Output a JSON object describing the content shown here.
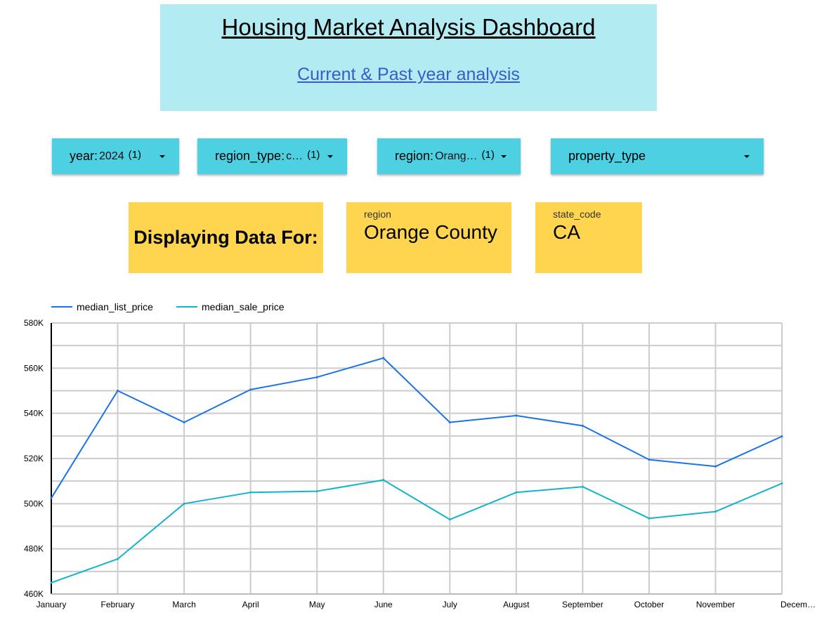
{
  "header": {
    "title": "Housing Market Analysis Dashboard",
    "subtitle_link": "Current & Past year analysis"
  },
  "filters": [
    {
      "key": "year",
      "value": "2024",
      "count": "(1)"
    },
    {
      "key": "region_type",
      "value": "c…",
      "count": "(1)"
    },
    {
      "key": "region",
      "value": "Orang…",
      "count": "(1)"
    },
    {
      "key": "property_type",
      "value": "",
      "count": ""
    }
  ],
  "scorecards": {
    "display_label": "Displaying Data For:",
    "region": {
      "label": "region",
      "value": "Orange County"
    },
    "state_code": {
      "label": "state_code",
      "value": "CA"
    }
  },
  "colors": {
    "header_bg": "#b2ebf2",
    "filter_bg": "#4dd0e1",
    "card_bg": "#ffd54f",
    "link": "#3c5bc5",
    "median_list_price": "#1a73e8",
    "median_sale_price": "#12b5cb"
  },
  "chart_data": {
    "type": "line",
    "categories": [
      "January",
      "February",
      "March",
      "April",
      "May",
      "June",
      "July",
      "August",
      "September",
      "October",
      "November",
      "Decem…"
    ],
    "series": [
      {
        "name": "median_list_price",
        "values": [
          502500,
          550000,
          536000,
          550500,
          556000,
          564500,
          536000,
          539000,
          534500,
          519500,
          516500,
          529800
        ]
      },
      {
        "name": "median_sale_price",
        "values": [
          465000,
          475500,
          500000,
          505000,
          505500,
          510500,
          493000,
          505000,
          507500,
          493500,
          496500,
          509000
        ]
      }
    ],
    "ylim": [
      460000,
      580000
    ],
    "yticks": [
      {
        "value": 460000,
        "label": "460K"
      },
      {
        "value": 480000,
        "label": "480K"
      },
      {
        "value": 500000,
        "label": "500K"
      },
      {
        "value": 520000,
        "label": "520K"
      },
      {
        "value": 540000,
        "label": "540K"
      },
      {
        "value": 560000,
        "label": "560K"
      },
      {
        "value": 580000,
        "label": "580K"
      }
    ],
    "grid": true,
    "legend_position": "top-left",
    "xlabel": "",
    "ylabel": ""
  }
}
